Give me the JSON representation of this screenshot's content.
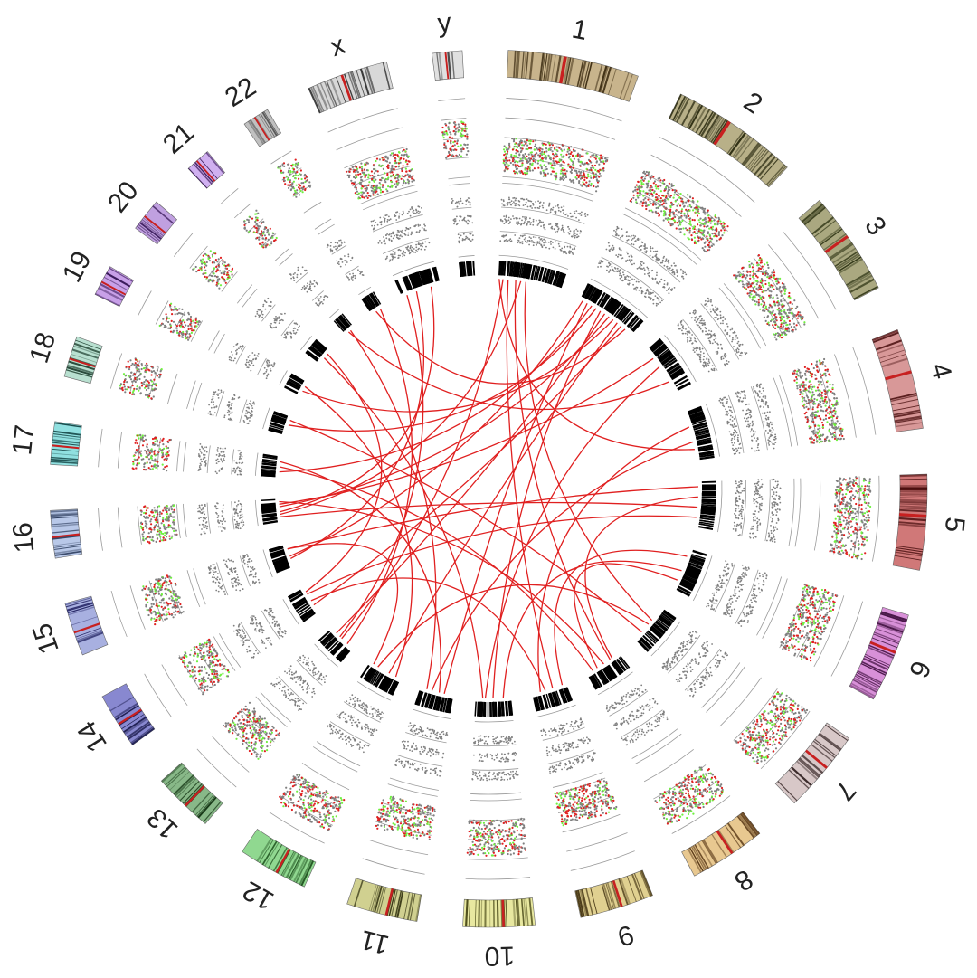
{
  "chromosomes": [
    {
      "name": "1",
      "label": "1",
      "size": 249,
      "color": "#c8b48c",
      "dark": "#3a2a10"
    },
    {
      "name": "2",
      "label": "2",
      "size": 243,
      "color": "#b8b088",
      "dark": "#2a2a10"
    },
    {
      "name": "3",
      "label": "3",
      "size": 198,
      "color": "#aaa880",
      "dark": "#2a3010"
    },
    {
      "name": "4",
      "label": "4",
      "size": 191,
      "color": "#d89898",
      "dark": "#4a1010"
    },
    {
      "name": "5",
      "label": "5",
      "size": 181,
      "color": "#d07878",
      "dark": "#400808"
    },
    {
      "name": "6",
      "label": "6",
      "size": 171,
      "color": "#d890d8",
      "dark": "#401040"
    },
    {
      "name": "7",
      "label": "7",
      "size": 159,
      "color": "#d8c8c8",
      "dark": "#302020"
    },
    {
      "name": "8",
      "label": "8",
      "size": 146,
      "color": "#e8c890",
      "dark": "#503010"
    },
    {
      "name": "9",
      "label": "9",
      "size": 141,
      "color": "#e0d090",
      "dark": "#403010"
    },
    {
      "name": "10",
      "label": "10",
      "size": 136,
      "color": "#e8e8a0",
      "dark": "#404010"
    },
    {
      "name": "11",
      "label": "11",
      "size": 135,
      "color": "#d0d090",
      "dark": "#303010"
    },
    {
      "name": "12",
      "label": "12",
      "size": 134,
      "color": "#90d890",
      "dark": "#104010"
    },
    {
      "name": "13",
      "label": "13",
      "size": 115,
      "color": "#88b888",
      "dark": "#103010"
    },
    {
      "name": "14",
      "label": "14",
      "size": 107,
      "color": "#8888d0",
      "dark": "#101040"
    },
    {
      "name": "15",
      "label": "15",
      "size": 102,
      "color": "#a8b0e0",
      "dark": "#202060"
    },
    {
      "name": "16",
      "label": "16",
      "size": 90,
      "color": "#b8c8e8",
      "dark": "#203050"
    },
    {
      "name": "17",
      "label": "17",
      "size": 81,
      "color": "#90e0e0",
      "dark": "#104040"
    },
    {
      "name": "18",
      "label": "18",
      "size": 78,
      "color": "#b8e0d0",
      "dark": "#103020"
    },
    {
      "name": "19",
      "label": "19",
      "size": 59,
      "color": "#c8a0e8",
      "dark": "#301050"
    },
    {
      "name": "20",
      "label": "20",
      "size": 63,
      "color": "#c0a0e0",
      "dark": "#301050"
    },
    {
      "name": "21",
      "label": "21",
      "size": 48,
      "color": "#d0b0f0",
      "dark": "#301050"
    },
    {
      "name": "22",
      "label": "22",
      "size": 51,
      "color": "#c0c0c0",
      "dark": "#303030"
    },
    {
      "name": "x",
      "label": "x",
      "size": 155,
      "color": "#d8d8d8",
      "dark": "#303030"
    },
    {
      "name": "y",
      "label": "y",
      "size": 57,
      "color": "#e0e0e0",
      "dark": "#404040"
    }
  ],
  "colors": {
    "gain": "#e02020",
    "loss": "#70f040",
    "neutral": "#808080",
    "link": "#e02020",
    "centromere": "#c82020",
    "sv_tick": "#000000",
    "grid": "#9a9a9a"
  },
  "tracks": {
    "copy_number_scatter": {
      "colors": [
        "gain",
        "neutral",
        "loss"
      ]
    },
    "allele_fraction_scatter": {
      "colors": [
        "neutral"
      ]
    },
    "structural_variant_ticks": {
      "color": "sv_tick"
    },
    "links": {
      "color": "link"
    }
  },
  "links": [
    [
      "1",
      5,
      "4",
      150
    ],
    [
      "1",
      20,
      "13",
      60
    ],
    [
      "1",
      40,
      "9",
      60
    ],
    [
      "1",
      70,
      "8",
      40
    ],
    [
      "1",
      90,
      "16",
      30
    ],
    [
      "1",
      110,
      "7",
      60
    ],
    [
      "2",
      10,
      "15",
      50
    ],
    [
      "2",
      30,
      "11",
      40
    ],
    [
      "2",
      50,
      "17",
      20
    ],
    [
      "2",
      70,
      "18",
      40
    ],
    [
      "2",
      90,
      "10",
      70
    ],
    [
      "2",
      110,
      "13",
      90
    ],
    [
      "2",
      130,
      "16",
      60
    ],
    [
      "2",
      150,
      "19",
      20
    ],
    [
      "2",
      170,
      "12",
      50
    ],
    [
      "2",
      190,
      "14",
      30
    ],
    [
      "2",
      210,
      "22",
      20
    ],
    [
      "3",
      40,
      "16",
      70
    ],
    [
      "3",
      80,
      "10",
      100
    ],
    [
      "4",
      60,
      "9",
      110
    ],
    [
      "4",
      120,
      "11",
      90
    ],
    [
      "5",
      20,
      "15",
      80
    ],
    [
      "5",
      60,
      "8",
      30
    ],
    [
      "5",
      100,
      "16",
      20
    ],
    [
      "5",
      140,
      "14",
      80
    ],
    [
      "6",
      30,
      "9",
      20
    ],
    [
      "6",
      90,
      "10",
      30
    ],
    [
      "6",
      130,
      "8",
      100
    ],
    [
      "7",
      80,
      "12",
      100
    ],
    [
      "7",
      120,
      "18",
      60
    ],
    [
      "8",
      70,
      "16",
      80
    ],
    [
      "9",
      90,
      "14",
      50
    ],
    [
      "10",
      110,
      "20",
      30
    ],
    [
      "11",
      60,
      "17",
      60
    ],
    [
      "11",
      110,
      "21",
      30
    ],
    [
      "12",
      20,
      "19",
      40
    ],
    [
      "13",
      30,
      "22",
      40
    ],
    [
      "14",
      90,
      "20",
      50
    ],
    [
      "15",
      40,
      "x",
      60
    ],
    [
      "16",
      40,
      "x",
      120
    ],
    [
      "12",
      120,
      "15",
      80
    ],
    [
      "3",
      150,
      "21",
      20
    ],
    [
      "13",
      70,
      "x",
      20
    ],
    [
      "8",
      120,
      "17",
      40
    ]
  ]
}
